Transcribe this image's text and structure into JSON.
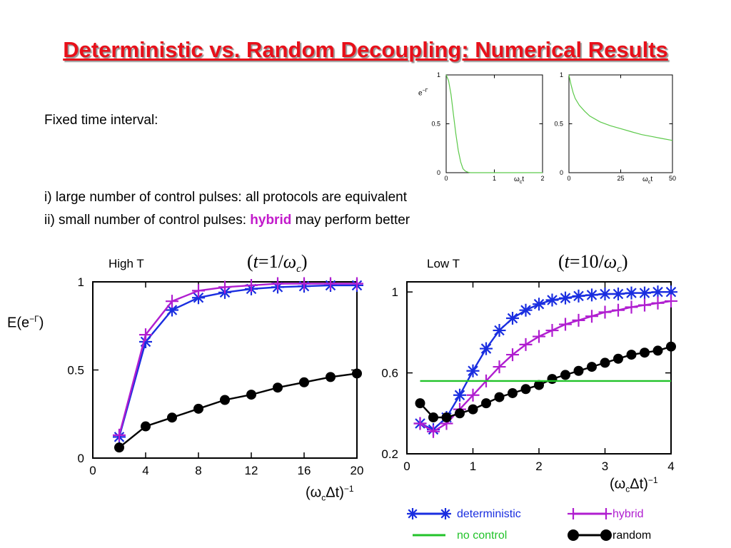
{
  "slide": {
    "title": "Deterministic vs. Random Decoupling: Numerical Results",
    "line1": "Fixed time interval:",
    "line2": "i) large number of control pulses: all protocols are equivalent",
    "line3_pre": "ii) small number of control pulses: ",
    "line3_hl": "hybrid",
    "line3_post": " may perform better",
    "highT_label": "High T",
    "lowT_label": "Low T",
    "highT_formula": {
      "lhs": "t",
      "eq": "=1/",
      "w": "ω",
      "sub": "c"
    },
    "lowT_formula": {
      "lhs": "t",
      "eq": "=10/",
      "w": "ω",
      "sub": "c"
    },
    "ylabel_main": "E(e",
    "ylabel_sup": "−Γ",
    "ylabel_close": ")",
    "xlabel_main": "(ω",
    "xlabel_sub": "c",
    "xlabel_rest": "Δt)",
    "xlabel_sup": "−1",
    "inset_ylabel": "e",
    "inset_ylabel_sup": "−Γ",
    "inset_xlabel": "ω",
    "inset_xlabel_sub": "c",
    "inset_xlabel_rest": "t"
  },
  "colors": {
    "title": "#e8101a",
    "deterministic": "#1a2ee0",
    "hybrid": "#b01ed0",
    "no_control": "#22c32a",
    "random": "#000000",
    "inset_curve": "#5cc94a"
  },
  "legend": [
    {
      "key": "deterministic",
      "label": "deterministic",
      "marker": "star"
    },
    {
      "key": "hybrid",
      "label": "hybrid",
      "marker": "plus"
    },
    {
      "key": "no_control",
      "label": "no control",
      "marker": "none"
    },
    {
      "key": "random",
      "label": "random",
      "marker": "circle"
    }
  ],
  "chart_data": [
    {
      "id": "inset-left",
      "type": "line",
      "xlim": [
        0,
        2
      ],
      "ylim": [
        0,
        1
      ],
      "xticks": [
        0,
        1,
        2
      ],
      "yticks": [
        0,
        0.5,
        1
      ],
      "series": [
        {
          "color_key": "inset_curve",
          "x": [
            0,
            0.05,
            0.1,
            0.15,
            0.2,
            0.25,
            0.3,
            0.35,
            0.4,
            0.45,
            0.5,
            0.6,
            0.8,
            1.0,
            1.5,
            2.0
          ],
          "y": [
            1.0,
            0.94,
            0.8,
            0.6,
            0.4,
            0.23,
            0.11,
            0.04,
            0.015,
            0.005,
            0.0,
            0.0,
            0.0,
            0.0,
            0.0,
            0.0
          ]
        }
      ]
    },
    {
      "id": "inset-right",
      "type": "line",
      "xlim": [
        0,
        50
      ],
      "ylim": [
        0,
        1
      ],
      "xticks": [
        0,
        25,
        50
      ],
      "yticks": [
        0,
        0.5,
        1
      ],
      "series": [
        {
          "color_key": "inset_curve",
          "x": [
            0,
            1,
            2,
            3,
            5,
            7.5,
            10,
            15,
            20,
            25,
            30,
            35,
            40,
            45,
            50
          ],
          "y": [
            1.0,
            0.9,
            0.82,
            0.76,
            0.69,
            0.63,
            0.58,
            0.52,
            0.48,
            0.45,
            0.42,
            0.39,
            0.37,
            0.35,
            0.33
          ]
        }
      ]
    },
    {
      "id": "main-left",
      "type": "line",
      "xlim": [
        0,
        20
      ],
      "ylim": [
        0,
        1
      ],
      "xticks": [
        0,
        4,
        8,
        12,
        16,
        20
      ],
      "yticks": [
        0,
        0.5,
        1
      ],
      "series": [
        {
          "key": "deterministic",
          "marker": "star",
          "x": [
            2,
            4,
            6,
            8,
            10,
            12,
            14,
            16,
            18,
            20
          ],
          "y": [
            0.12,
            0.66,
            0.84,
            0.91,
            0.94,
            0.96,
            0.97,
            0.975,
            0.98,
            0.98
          ]
        },
        {
          "key": "hybrid",
          "marker": "plus",
          "x": [
            2,
            4,
            6,
            8,
            10,
            12,
            14,
            16,
            18,
            20
          ],
          "y": [
            0.13,
            0.7,
            0.89,
            0.95,
            0.97,
            0.98,
            0.99,
            0.99,
            0.99,
            0.99
          ]
        },
        {
          "key": "random",
          "marker": "circle",
          "x": [
            2,
            4,
            6,
            8,
            10,
            12,
            14,
            16,
            18,
            20
          ],
          "y": [
            0.06,
            0.18,
            0.23,
            0.28,
            0.33,
            0.36,
            0.4,
            0.43,
            0.46,
            0.48
          ]
        }
      ]
    },
    {
      "id": "main-right",
      "type": "line",
      "xlim": [
        0,
        4
      ],
      "ylim": [
        0.2,
        1.05
      ],
      "xticks": [
        0,
        1,
        2,
        3,
        4
      ],
      "yticks": [
        0.2,
        0.6,
        1
      ],
      "series": [
        {
          "key": "deterministic",
          "marker": "star",
          "x": [
            0.2,
            0.4,
            0.6,
            0.8,
            1.0,
            1.2,
            1.4,
            1.6,
            1.8,
            2.0,
            2.2,
            2.4,
            2.6,
            2.8,
            3.0,
            3.2,
            3.4,
            3.6,
            3.8,
            4.0
          ],
          "y": [
            0.35,
            0.32,
            0.38,
            0.49,
            0.61,
            0.72,
            0.81,
            0.87,
            0.91,
            0.94,
            0.96,
            0.97,
            0.98,
            0.985,
            0.99,
            0.99,
            0.995,
            0.995,
            1.0,
            1.0
          ]
        },
        {
          "key": "hybrid",
          "marker": "plus",
          "x": [
            0.2,
            0.4,
            0.6,
            0.8,
            1.0,
            1.2,
            1.4,
            1.6,
            1.8,
            2.0,
            2.2,
            2.4,
            2.6,
            2.8,
            3.0,
            3.2,
            3.4,
            3.6,
            3.8,
            4.0
          ],
          "y": [
            0.35,
            0.31,
            0.35,
            0.42,
            0.49,
            0.56,
            0.63,
            0.69,
            0.74,
            0.78,
            0.81,
            0.84,
            0.86,
            0.88,
            0.9,
            0.91,
            0.925,
            0.935,
            0.945,
            0.955
          ]
        },
        {
          "key": "random",
          "marker": "circle",
          "x": [
            0.2,
            0.4,
            0.6,
            0.8,
            1.0,
            1.2,
            1.4,
            1.6,
            1.8,
            2.0,
            2.2,
            2.4,
            2.6,
            2.8,
            3.0,
            3.2,
            3.4,
            3.6,
            3.8,
            4.0
          ],
          "y": [
            0.45,
            0.38,
            0.38,
            0.4,
            0.42,
            0.45,
            0.48,
            0.5,
            0.52,
            0.54,
            0.57,
            0.59,
            0.61,
            0.63,
            0.65,
            0.67,
            0.69,
            0.7,
            0.71,
            0.73
          ]
        },
        {
          "key": "no_control",
          "marker": "none",
          "x": [
            0.2,
            4.0
          ],
          "y": [
            0.56,
            0.56
          ]
        }
      ]
    }
  ]
}
